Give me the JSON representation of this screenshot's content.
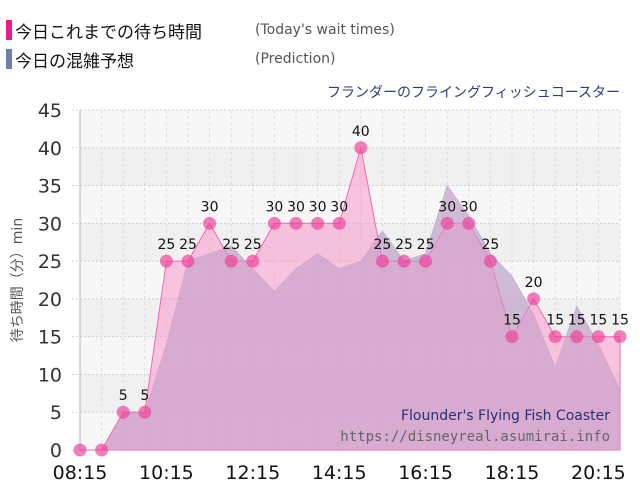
{
  "legend": {
    "actual": {
      "label": "今日これまでの待ち時間",
      "sub": "(Today's wait times)",
      "color": "#ee1a8a"
    },
    "prediction": {
      "label": "今日の混雑予想",
      "sub": "(Prediction)",
      "color": "#6f7fae"
    }
  },
  "attraction_jp": "フランダーのフライングフィッシュコースター",
  "watermark": {
    "name": "Flounder's Flying Fish Coaster",
    "url": "https://disneyreal.asumirai.info"
  },
  "chart_data": {
    "type": "area",
    "title": "フランダーのフライングフィッシュコースター",
    "xlabel": "",
    "ylabel": "待ち時間（分）min",
    "ylim": [
      0,
      45
    ],
    "yticks": [
      0,
      5,
      10,
      15,
      20,
      25,
      30,
      35,
      40,
      45
    ],
    "xtick_labels": [
      "08:15",
      "10:15",
      "12:15",
      "14:15",
      "16:15",
      "18:15",
      "20:15"
    ],
    "grid": true,
    "legend_position": "top-left",
    "x": [
      "08:15",
      "08:45",
      "09:15",
      "09:45",
      "10:15",
      "10:45",
      "11:15",
      "11:45",
      "12:15",
      "12:45",
      "13:15",
      "13:45",
      "14:15",
      "14:45",
      "15:15",
      "15:45",
      "16:15",
      "16:45",
      "17:15",
      "17:45",
      "18:15",
      "18:45",
      "19:15",
      "19:45",
      "20:15",
      "20:45"
    ],
    "series": [
      {
        "name": "今日これまでの待ち時間 (Today's wait times)",
        "color": "#ee1a8a",
        "values": [
          0,
          0,
          5,
          5,
          25,
          25,
          30,
          25,
          25,
          30,
          30,
          30,
          30,
          40,
          25,
          25,
          25,
          30,
          30,
          25,
          15,
          20,
          15,
          15,
          15,
          15
        ]
      },
      {
        "name": "今日の混雑予想 (Prediction)",
        "color": "#6f7fae",
        "values": [
          0,
          0,
          5,
          5,
          14,
          25,
          26,
          27,
          24,
          21,
          24,
          26,
          24,
          25,
          29,
          25,
          26,
          35,
          31,
          26,
          23,
          18,
          11,
          19,
          14,
          8
        ]
      }
    ]
  }
}
